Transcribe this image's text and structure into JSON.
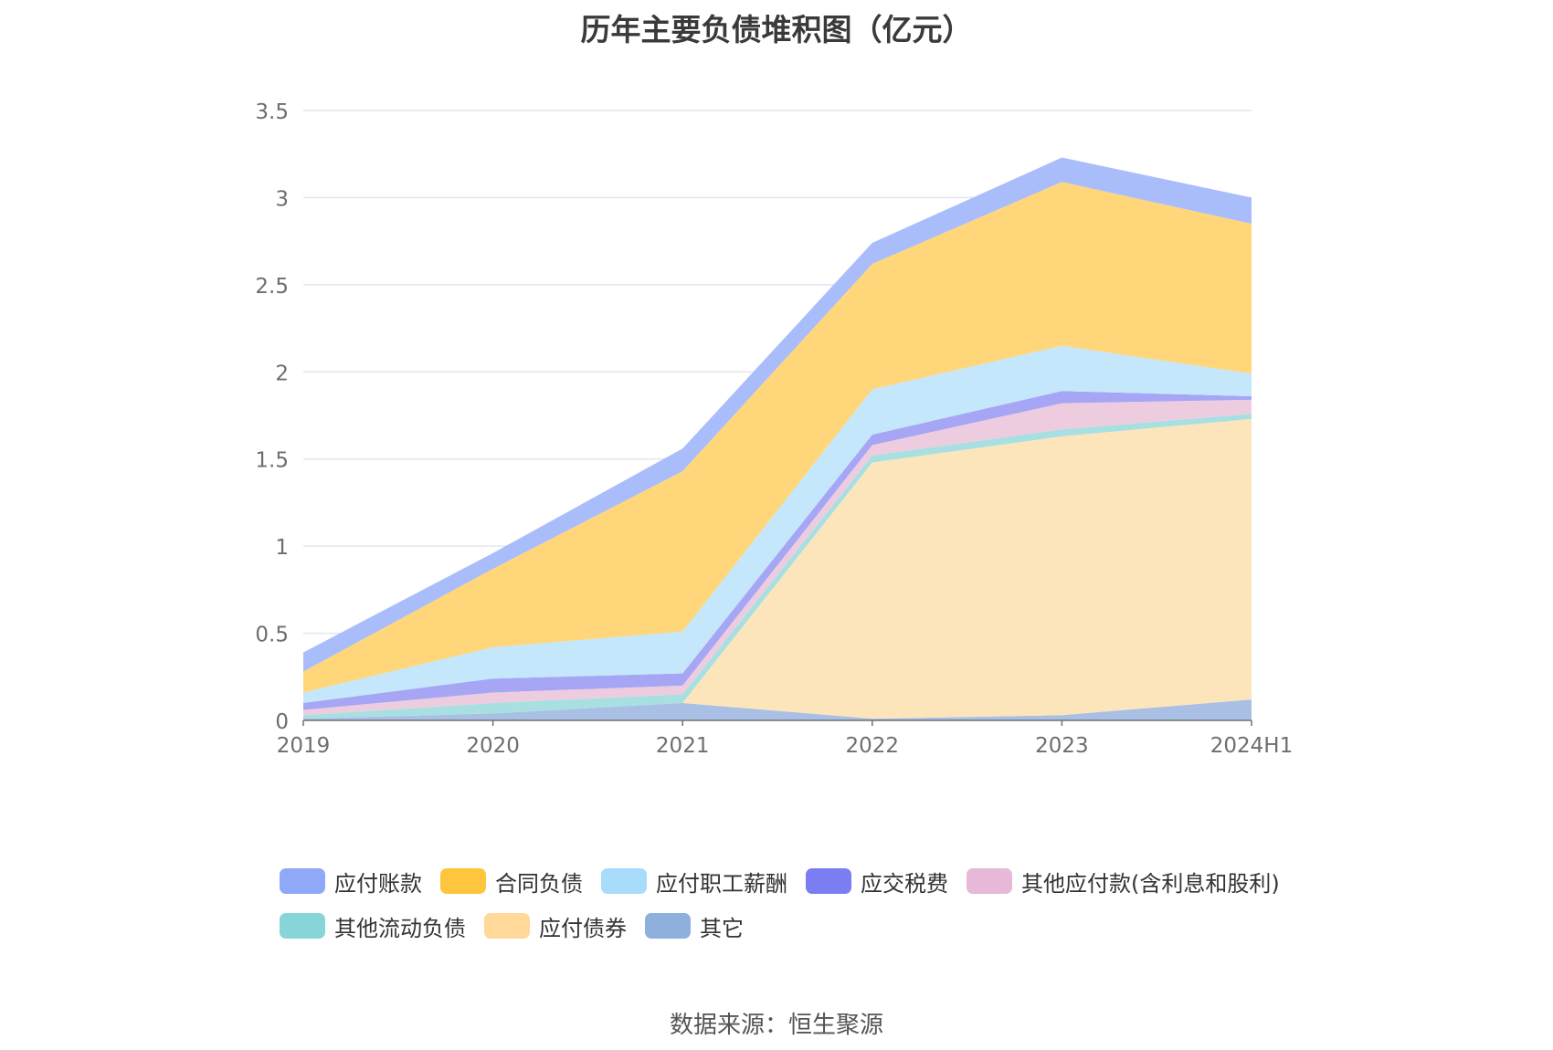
{
  "chart_data": {
    "type": "area",
    "stacked": true,
    "title": "历年主要负债堆积图（亿元）",
    "xlabel": "",
    "ylabel": "",
    "categories": [
      "2019",
      "2020",
      "2021",
      "2022",
      "2023",
      "2024H1"
    ],
    "ylim": [
      0,
      3.5
    ],
    "yticks": [
      0,
      0.5,
      1,
      1.5,
      2,
      2.5,
      3,
      3.5
    ],
    "ytick_labels": [
      "0",
      "0.5",
      "1",
      "1.5",
      "2",
      "2.5",
      "3",
      "3.5"
    ],
    "grid": true,
    "legend_position": "bottom",
    "series": [
      {
        "name": "应付账款",
        "values": [
          0.11,
          0.09,
          0.13,
          0.12,
          0.14,
          0.15
        ],
        "color": "#8fa8f8",
        "fill": "#aabdfb"
      },
      {
        "name": "合同负债",
        "values": [
          0.12,
          0.45,
          0.92,
          0.72,
          0.94,
          0.86
        ],
        "color": "#ffc63d",
        "fill": "#ffd67a"
      },
      {
        "name": "应付职工薪酬",
        "values": [
          0.06,
          0.18,
          0.24,
          0.26,
          0.26,
          0.13
        ],
        "color": "#a8dcfb",
        "fill": "#c4e7fb"
      },
      {
        "name": "应交税费",
        "values": [
          0.04,
          0.08,
          0.07,
          0.06,
          0.07,
          0.02
        ],
        "color": "#7b7ef2",
        "fill": "#a6a6f5"
      },
      {
        "name": "其他应付款(含利息和股利)",
        "values": [
          0.03,
          0.06,
          0.05,
          0.06,
          0.15,
          0.08
        ],
        "color": "#e8b8d8",
        "fill": "#eeccdf"
      },
      {
        "name": "其他流动负债",
        "values": [
          0.02,
          0.06,
          0.05,
          0.04,
          0.04,
          0.03
        ],
        "color": "#87d5d8",
        "fill": "#a8e0e2"
      },
      {
        "name": "应付债券",
        "values": [
          0,
          0,
          0,
          1.47,
          1.6,
          1.61
        ],
        "color": "#ffd89a",
        "fill": "#fde5bb"
      },
      {
        "name": "其它",
        "values": [
          0.01,
          0.04,
          0.1,
          0.01,
          0.03,
          0.12
        ],
        "color": "#8fb0dc",
        "fill": "#a9c0e4"
      }
    ]
  },
  "footer": {
    "source": "数据来源：恒生聚源"
  }
}
